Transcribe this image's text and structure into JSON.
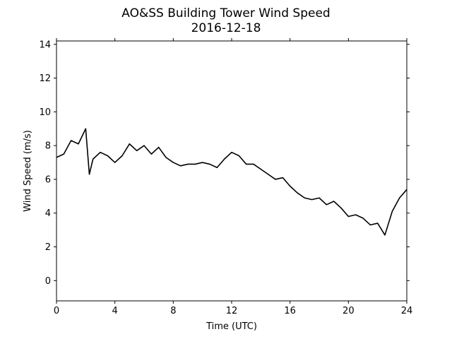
{
  "chart_data": {
    "type": "line",
    "title": "AO&SS Building Tower Wind Speed",
    "subtitle": "2016-12-18",
    "xlabel": "Time (UTC)",
    "ylabel": "Wind Speed (m/s)",
    "xlim": [
      0,
      24
    ],
    "ylim": [
      -1.2,
      14.2
    ],
    "xticks": [
      0,
      4,
      8,
      12,
      16,
      20,
      24
    ],
    "yticks": [
      0,
      2,
      4,
      6,
      8,
      10,
      12,
      14
    ],
    "grid": false,
    "line_color": "#000000",
    "series": [
      {
        "x": [
          0,
          0.5,
          1,
          1.5,
          2,
          2.25,
          2.5,
          3,
          3.5,
          4,
          4.5,
          5,
          5.5,
          6,
          6.5,
          7,
          7.5,
          8,
          8.5,
          9,
          9.5,
          10,
          10.5,
          11,
          11.5,
          12,
          12.5,
          13,
          13.5,
          14,
          14.5,
          15,
          15.5,
          16,
          16.5,
          17,
          17.5,
          18,
          18.5,
          19,
          19.5,
          20,
          20.5,
          21,
          21.5,
          22,
          22.5,
          23,
          23.5,
          24
        ],
        "y": [
          7.3,
          7.5,
          8.3,
          8.1,
          9.0,
          6.3,
          7.2,
          7.6,
          7.4,
          7.0,
          7.4,
          8.1,
          7.7,
          8.0,
          7.5,
          7.9,
          7.3,
          7.0,
          6.8,
          6.9,
          6.9,
          7.0,
          6.9,
          6.7,
          7.2,
          7.6,
          7.4,
          6.9,
          6.9,
          6.6,
          6.3,
          6.0,
          6.1,
          5.6,
          5.2,
          4.9,
          4.8,
          4.9,
          4.5,
          4.7,
          4.3,
          3.8,
          3.9,
          3.7,
          3.3,
          3.4,
          2.7,
          4.1,
          4.9,
          5.4
        ]
      }
    ]
  }
}
